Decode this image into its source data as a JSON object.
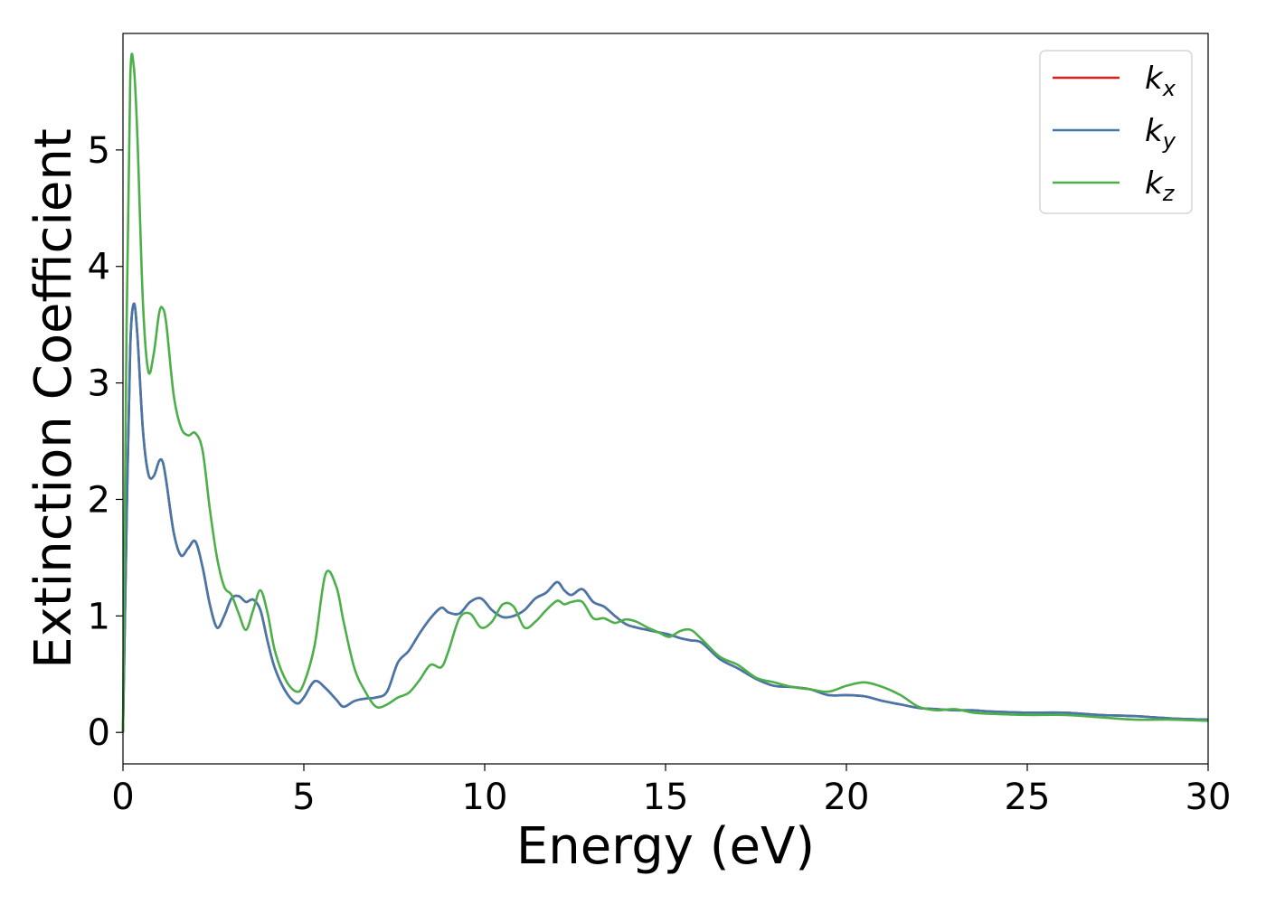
{
  "chart_data": {
    "type": "line",
    "xlabel": "Energy (eV)",
    "ylabel": "Extinction Coefficient",
    "xlim": [
      0,
      30
    ],
    "ylim": [
      -0.27,
      6.0
    ],
    "xticks": [
      "0",
      "5",
      "10",
      "15",
      "20",
      "25",
      "30"
    ],
    "yticks": [
      "0",
      "1",
      "2",
      "3",
      "4",
      "5"
    ],
    "grid": false,
    "legend_position": "top-right",
    "series": [
      {
        "name": "k",
        "subscript": "x",
        "color": "#e41a1c",
        "x": [
          0,
          0.1,
          0.2,
          0.3,
          0.4,
          0.55,
          0.7,
          0.85,
          1.0,
          1.1,
          1.2,
          1.4,
          1.6,
          1.8,
          2.0,
          2.2,
          2.4,
          2.6,
          2.8,
          3.0,
          3.2,
          3.4,
          3.6,
          3.8,
          4.0,
          4.2,
          4.5,
          4.8,
          5.0,
          5.3,
          5.6,
          5.9,
          6.1,
          6.4,
          6.7,
          7.0,
          7.3,
          7.6,
          7.9,
          8.2,
          8.5,
          8.8,
          9.0,
          9.3,
          9.6,
          9.9,
          10.2,
          10.5,
          10.8,
          11.1,
          11.4,
          11.7,
          12.0,
          12.2,
          12.4,
          12.7,
          13.0,
          13.3,
          13.6,
          13.9,
          14.2,
          14.5,
          14.8,
          15.1,
          15.4,
          15.7,
          16.0,
          16.5,
          17.0,
          17.5,
          18.0,
          18.5,
          19.0,
          19.5,
          20.0,
          20.5,
          21.0,
          21.5,
          22.0,
          22.5,
          23.0,
          23.5,
          24.0,
          25.0,
          26.0,
          27.0,
          28.0,
          29.0,
          30.0
        ],
        "values": [
          0.0,
          1.8,
          3.3,
          3.68,
          3.4,
          2.6,
          2.22,
          2.2,
          2.33,
          2.32,
          2.15,
          1.72,
          1.52,
          1.58,
          1.64,
          1.42,
          1.1,
          0.9,
          1.0,
          1.15,
          1.17,
          1.12,
          1.14,
          1.05,
          0.78,
          0.55,
          0.35,
          0.25,
          0.3,
          0.44,
          0.38,
          0.28,
          0.22,
          0.27,
          0.29,
          0.3,
          0.35,
          0.6,
          0.7,
          0.85,
          0.98,
          1.07,
          1.03,
          1.02,
          1.12,
          1.15,
          1.05,
          0.99,
          1.0,
          1.05,
          1.15,
          1.2,
          1.29,
          1.22,
          1.18,
          1.23,
          1.12,
          1.08,
          1.0,
          0.93,
          0.9,
          0.88,
          0.86,
          0.84,
          0.81,
          0.79,
          0.77,
          0.63,
          0.55,
          0.46,
          0.4,
          0.39,
          0.37,
          0.32,
          0.32,
          0.31,
          0.27,
          0.24,
          0.21,
          0.2,
          0.19,
          0.19,
          0.18,
          0.17,
          0.17,
          0.15,
          0.14,
          0.12,
          0.11
        ]
      },
      {
        "name": "k",
        "subscript": "y",
        "color": "#4477aa",
        "x": [
          0,
          0.1,
          0.2,
          0.3,
          0.4,
          0.55,
          0.7,
          0.85,
          1.0,
          1.1,
          1.2,
          1.4,
          1.6,
          1.8,
          2.0,
          2.2,
          2.4,
          2.6,
          2.8,
          3.0,
          3.2,
          3.4,
          3.6,
          3.8,
          4.0,
          4.2,
          4.5,
          4.8,
          5.0,
          5.3,
          5.6,
          5.9,
          6.1,
          6.4,
          6.7,
          7.0,
          7.3,
          7.6,
          7.9,
          8.2,
          8.5,
          8.8,
          9.0,
          9.3,
          9.6,
          9.9,
          10.2,
          10.5,
          10.8,
          11.1,
          11.4,
          11.7,
          12.0,
          12.2,
          12.4,
          12.7,
          13.0,
          13.3,
          13.6,
          13.9,
          14.2,
          14.5,
          14.8,
          15.1,
          15.4,
          15.7,
          16.0,
          16.5,
          17.0,
          17.5,
          18.0,
          18.5,
          19.0,
          19.5,
          20.0,
          20.5,
          21.0,
          21.5,
          22.0,
          22.5,
          23.0,
          23.5,
          24.0,
          25.0,
          26.0,
          27.0,
          28.0,
          29.0,
          30.0
        ],
        "values": [
          0.0,
          1.8,
          3.3,
          3.68,
          3.4,
          2.6,
          2.22,
          2.2,
          2.33,
          2.32,
          2.15,
          1.72,
          1.52,
          1.58,
          1.64,
          1.42,
          1.1,
          0.9,
          1.0,
          1.15,
          1.17,
          1.12,
          1.14,
          1.05,
          0.78,
          0.55,
          0.35,
          0.25,
          0.3,
          0.44,
          0.38,
          0.28,
          0.22,
          0.27,
          0.29,
          0.3,
          0.35,
          0.6,
          0.7,
          0.85,
          0.98,
          1.07,
          1.03,
          1.02,
          1.12,
          1.15,
          1.05,
          0.99,
          1.0,
          1.05,
          1.15,
          1.2,
          1.29,
          1.22,
          1.18,
          1.23,
          1.12,
          1.08,
          1.0,
          0.93,
          0.9,
          0.88,
          0.86,
          0.84,
          0.81,
          0.79,
          0.77,
          0.63,
          0.55,
          0.46,
          0.4,
          0.39,
          0.37,
          0.32,
          0.32,
          0.31,
          0.27,
          0.24,
          0.21,
          0.2,
          0.19,
          0.19,
          0.18,
          0.17,
          0.17,
          0.15,
          0.14,
          0.12,
          0.11
        ]
      },
      {
        "name": "k",
        "subscript": "z",
        "color": "#4daf4a",
        "x": [
          0,
          0.1,
          0.2,
          0.3,
          0.4,
          0.55,
          0.7,
          0.85,
          1.0,
          1.1,
          1.2,
          1.4,
          1.6,
          1.8,
          2.0,
          2.2,
          2.4,
          2.6,
          2.8,
          3.0,
          3.2,
          3.4,
          3.6,
          3.8,
          4.0,
          4.2,
          4.5,
          4.8,
          5.0,
          5.3,
          5.6,
          5.9,
          6.1,
          6.4,
          6.7,
          7.0,
          7.3,
          7.6,
          7.9,
          8.2,
          8.5,
          8.8,
          9.0,
          9.3,
          9.6,
          9.9,
          10.2,
          10.5,
          10.8,
          11.1,
          11.4,
          11.7,
          12.0,
          12.2,
          12.4,
          12.7,
          13.0,
          13.3,
          13.6,
          13.9,
          14.2,
          14.5,
          14.8,
          15.1,
          15.4,
          15.7,
          16.0,
          16.5,
          17.0,
          17.5,
          18.0,
          18.5,
          19.0,
          19.5,
          20.0,
          20.5,
          21.0,
          21.5,
          22.0,
          22.5,
          23.0,
          23.5,
          24.0,
          25.0,
          26.0,
          27.0,
          28.0,
          29.0,
          30.0
        ],
        "values": [
          0.0,
          3.5,
          5.6,
          5.71,
          5.1,
          3.7,
          3.1,
          3.25,
          3.6,
          3.64,
          3.5,
          2.9,
          2.62,
          2.55,
          2.57,
          2.42,
          1.92,
          1.5,
          1.25,
          1.18,
          1.02,
          0.88,
          1.05,
          1.22,
          1.02,
          0.7,
          0.45,
          0.35,
          0.42,
          0.75,
          1.36,
          1.25,
          0.95,
          0.55,
          0.35,
          0.22,
          0.24,
          0.3,
          0.34,
          0.45,
          0.58,
          0.56,
          0.7,
          0.98,
          1.02,
          0.9,
          0.95,
          1.1,
          1.08,
          0.9,
          0.95,
          1.05,
          1.13,
          1.1,
          1.12,
          1.12,
          0.98,
          0.98,
          0.94,
          0.97,
          0.95,
          0.9,
          0.86,
          0.82,
          0.87,
          0.88,
          0.8,
          0.65,
          0.58,
          0.47,
          0.43,
          0.39,
          0.37,
          0.35,
          0.4,
          0.43,
          0.39,
          0.32,
          0.22,
          0.19,
          0.2,
          0.17,
          0.16,
          0.15,
          0.15,
          0.13,
          0.11,
          0.11,
          0.1
        ]
      }
    ]
  }
}
